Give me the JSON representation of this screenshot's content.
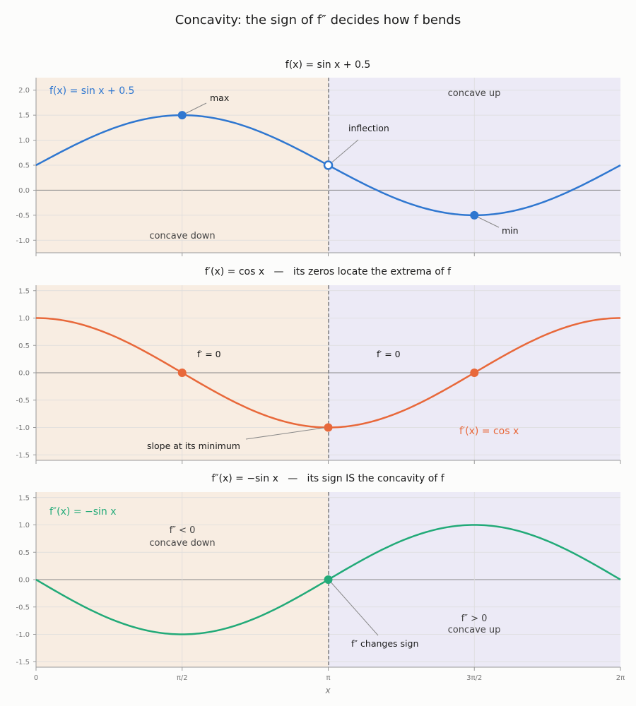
{
  "figure": {
    "suptitle": "Concavity: the sign of f″ decides how f bends",
    "xlabel": "x",
    "x_ticks": [
      "0",
      "π/2",
      "π",
      "3π/2",
      "2π"
    ]
  },
  "colors": {
    "concave_down_bg": "#f8ede2",
    "concave_up_bg": "#eceaf6",
    "f": "#2f77d0",
    "fp": "#e8683a",
    "fpp": "#22aa78"
  },
  "chart_data": [
    {
      "type": "line",
      "title": "f(x) = sin x + 0.5",
      "xlim": [
        0,
        6.2832
      ],
      "ylim": [
        -1.25,
        2.25
      ],
      "yticks": [
        -1.0,
        -0.5,
        0.0,
        0.5,
        1.0,
        1.5,
        2.0
      ],
      "series": [
        {
          "name": "f(x) = sin x + 0.5",
          "x": [
            0,
            0.3927,
            0.7854,
            1.1781,
            1.5708,
            1.9635,
            2.3562,
            2.7489,
            3.1416,
            3.5343,
            3.927,
            4.3197,
            4.7124,
            5.1051,
            5.4978,
            5.8905,
            6.2832
          ],
          "y": [
            0.5,
            0.883,
            1.207,
            1.424,
            1.5,
            1.424,
            1.207,
            0.883,
            0.5,
            0.117,
            -0.207,
            -0.424,
            -0.5,
            -0.424,
            -0.207,
            0.117,
            0.5
          ]
        }
      ],
      "points": [
        {
          "label": "max",
          "x": 1.5708,
          "y": 1.5,
          "filled": true
        },
        {
          "label": "inflection",
          "x": 3.1416,
          "y": 0.5,
          "filled": false
        },
        {
          "label": "min",
          "x": 4.7124,
          "y": -0.5,
          "filled": true
        }
      ],
      "regions": {
        "left": "concave down",
        "right": "concave up"
      }
    },
    {
      "type": "line",
      "title": "f′(x) = cos x   —   its zeros locate the extrema of f",
      "xlim": [
        0,
        6.2832
      ],
      "ylim": [
        -1.6,
        1.6
      ],
      "yticks": [
        -1.5,
        -1.0,
        -0.5,
        0.0,
        0.5,
        1.0,
        1.5
      ],
      "series": [
        {
          "name": "f′(x) = cos x",
          "x": [
            0,
            0.3927,
            0.7854,
            1.1781,
            1.5708,
            1.9635,
            2.3562,
            2.7489,
            3.1416,
            3.5343,
            3.927,
            4.3197,
            4.7124,
            5.1051,
            5.4978,
            5.8905,
            6.2832
          ],
          "y": [
            1.0,
            0.924,
            0.707,
            0.383,
            0.0,
            -0.383,
            -0.707,
            -0.924,
            -1.0,
            -0.924,
            -0.707,
            -0.383,
            0.0,
            0.383,
            0.707,
            0.924,
            1.0
          ]
        }
      ],
      "points": [
        {
          "label": "f′ = 0",
          "x": 1.5708,
          "y": 0.0,
          "filled": true
        },
        {
          "label": "slope at its minimum",
          "x": 3.1416,
          "y": -1.0,
          "filled": true
        },
        {
          "label": "f′ = 0",
          "x": 4.7124,
          "y": 0.0,
          "filled": true
        }
      ]
    },
    {
      "type": "line",
      "title": "f″(x) = −sin x   —   its sign IS the concavity of f",
      "xlim": [
        0,
        6.2832
      ],
      "ylim": [
        -1.6,
        1.6
      ],
      "yticks": [
        -1.5,
        -1.0,
        -0.5,
        0.0,
        0.5,
        1.0,
        1.5
      ],
      "series": [
        {
          "name": "f″(x) = −sin x",
          "x": [
            0,
            0.3927,
            0.7854,
            1.1781,
            1.5708,
            1.9635,
            2.3562,
            2.7489,
            3.1416,
            3.5343,
            3.927,
            4.3197,
            4.7124,
            5.1051,
            5.4978,
            5.8905,
            6.2832
          ],
          "y": [
            0.0,
            -0.383,
            -0.707,
            -0.924,
            -1.0,
            -0.924,
            -0.707,
            -0.383,
            0.0,
            0.383,
            0.707,
            0.924,
            1.0,
            0.924,
            0.707,
            0.383,
            0.0
          ]
        }
      ],
      "points": [
        {
          "label": "f″ changes sign",
          "x": 3.1416,
          "y": 0.0,
          "filled": true
        }
      ],
      "regions": {
        "left_sign": "f″ < 0",
        "left": "concave down",
        "right_sign": "f″ > 0",
        "right": "concave up"
      }
    }
  ]
}
